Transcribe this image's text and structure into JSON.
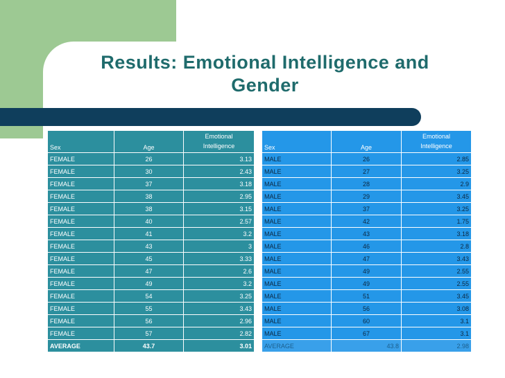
{
  "slide": {
    "title_line1": "Results: Emotional Intelligence and",
    "title_line2": "Gender"
  },
  "female_table": {
    "headers": {
      "sex": "Sex",
      "age": "Age",
      "ei_line1": "Emotional",
      "ei_line2": "Intelligence"
    },
    "rows": [
      {
        "sex": "FEMALE",
        "age": "26",
        "ei": "3.13"
      },
      {
        "sex": "FEMALE",
        "age": "30",
        "ei": "2.43"
      },
      {
        "sex": "FEMALE",
        "age": "37",
        "ei": "3.18"
      },
      {
        "sex": "FEMALE",
        "age": "38",
        "ei": "2.95"
      },
      {
        "sex": "FEMALE",
        "age": "38",
        "ei": "3.15"
      },
      {
        "sex": "FEMALE",
        "age": "40",
        "ei": "2.57"
      },
      {
        "sex": "FEMALE",
        "age": "41",
        "ei": "3.2"
      },
      {
        "sex": "FEMALE",
        "age": "43",
        "ei": "3"
      },
      {
        "sex": "FEMALE",
        "age": "45",
        "ei": "3.33"
      },
      {
        "sex": "FEMALE",
        "age": "47",
        "ei": "2.6"
      },
      {
        "sex": "FEMALE",
        "age": "49",
        "ei": "3.2"
      },
      {
        "sex": "FEMALE",
        "age": "54",
        "ei": "3.25"
      },
      {
        "sex": "FEMALE",
        "age": "55",
        "ei": "3.43"
      },
      {
        "sex": "FEMALE",
        "age": "56",
        "ei": "2.96"
      },
      {
        "sex": "FEMALE",
        "age": "57",
        "ei": "2.82"
      }
    ],
    "average": {
      "sex": "AVERAGE",
      "age": "43.7",
      "ei": "3.01"
    }
  },
  "male_table": {
    "headers": {
      "sex": "Sex",
      "age": "Age",
      "ei_line1": "Emotional",
      "ei_line2": "Intelligence"
    },
    "rows": [
      {
        "sex": "MALE",
        "age": "26",
        "ei": "2.85"
      },
      {
        "sex": "MALE",
        "age": "27",
        "ei": "3.25"
      },
      {
        "sex": "MALE",
        "age": "28",
        "ei": "2.9"
      },
      {
        "sex": "MALE",
        "age": "29",
        "ei": "3.45"
      },
      {
        "sex": "MALE",
        "age": "37",
        "ei": "3.25"
      },
      {
        "sex": "MALE",
        "age": "42",
        "ei": "1.75"
      },
      {
        "sex": "MALE",
        "age": "43",
        "ei": "3.18"
      },
      {
        "sex": "MALE",
        "age": "46",
        "ei": "2.8"
      },
      {
        "sex": "MALE",
        "age": "47",
        "ei": "3.43"
      },
      {
        "sex": "MALE",
        "age": "49",
        "ei": "2.55"
      },
      {
        "sex": "MALE",
        "age": "49",
        "ei": "2.55"
      },
      {
        "sex": "MALE",
        "age": "51",
        "ei": "3.45"
      },
      {
        "sex": "MALE",
        "age": "56",
        "ei": "3.08"
      },
      {
        "sex": "MALE",
        "age": "60",
        "ei": "3.1"
      },
      {
        "sex": "MALE",
        "age": "67",
        "ei": "3.1"
      }
    ],
    "average": {
      "sex": "AVERAGE",
      "age": "43.8",
      "ei": "2.98"
    }
  },
  "colors": {
    "title": "#1f6b6c",
    "green_block": "#9dc993",
    "navy_bar": "#0f3e5c",
    "female_cell": "#2c8f9e",
    "male_cell": "#2497e8"
  }
}
